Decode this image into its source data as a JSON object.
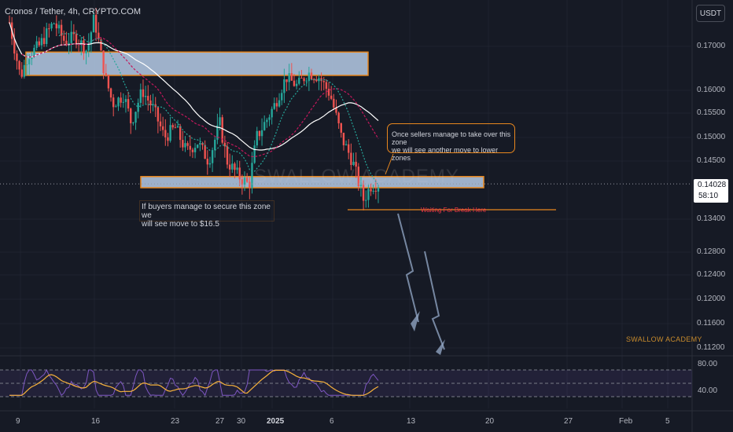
{
  "header": {
    "symbol_title": "Cronos / Tether, 4h, CRYPTO.COM",
    "currency_button": "USDT"
  },
  "price_tag": {
    "price": "0.14028",
    "countdown": "58:10"
  },
  "annotations": {
    "sell_note": [
      "Once sellers manage to take over this zone",
      "we will see another move to lower zones"
    ],
    "buy_note": [
      "If buyers manage to secure this zone we",
      "will see move to $16.5"
    ],
    "wait_label": "Waiting For Break Here",
    "watermark": "SWALLOW ACADEMY",
    "brand": "SWALLOW ACADEMY"
  },
  "colors": {
    "background": "#161a25",
    "bull": "#26a69a",
    "bear": "#ef5350",
    "zone_fill": "#b6cde8",
    "zone_border": "#e8871e",
    "rsi_line": "#7e57c2",
    "rsi_ma": "#f7b23b"
  },
  "chart_data": [
    {
      "type": "candlestick",
      "title": "Cronos / Tether, 4h, CRYPTO.COM",
      "y_ticks": [
        "0.17000",
        "0.16000",
        "0.15500",
        "0.15000",
        "0.14500",
        "0.13400",
        "0.12800",
        "0.12400",
        "0.12000",
        "0.11600",
        "0.11200"
      ],
      "x_ticks": [
        "9",
        "16",
        "23",
        "27",
        "30",
        "2025",
        "6",
        "13",
        "20",
        "27",
        "Feb",
        "5"
      ],
      "last_price": 0.14028,
      "zones": [
        {
          "name": "resistance",
          "ylim": [
            0.1634,
            0.1687
          ]
        },
        {
          "name": "support",
          "ylim": [
            0.1395,
            0.1418
          ]
        }
      ],
      "path_points": [
        [
          0,
          0.175
        ],
        [
          3,
          0.163
        ],
        [
          5,
          0.168
        ],
        [
          8,
          0.17
        ],
        [
          12,
          0.175
        ],
        [
          15,
          0.171
        ],
        [
          18,
          0.172
        ],
        [
          21,
          0.169
        ],
        [
          23,
          0.176
        ],
        [
          26,
          0.163
        ],
        [
          28,
          0.157
        ],
        [
          31,
          0.159
        ],
        [
          33,
          0.153
        ],
        [
          36,
          0.16
        ],
        [
          39,
          0.156
        ],
        [
          42,
          0.15
        ],
        [
          45,
          0.152
        ],
        [
          48,
          0.147
        ],
        [
          51,
          0.149
        ],
        [
          54,
          0.145
        ],
        [
          57,
          0.153
        ],
        [
          59,
          0.145
        ],
        [
          62,
          0.142
        ],
        [
          65,
          0.14
        ],
        [
          67,
          0.15
        ],
        [
          70,
          0.154
        ],
        [
          72,
          0.157
        ],
        [
          75,
          0.163
        ],
        [
          78,
          0.161
        ],
        [
          81,
          0.164
        ],
        [
          84,
          0.163
        ],
        [
          87,
          0.159
        ],
        [
          90,
          0.15
        ],
        [
          93,
          0.145
        ],
        [
          96,
          0.137
        ],
        [
          98,
          0.14
        ],
        [
          100,
          0.14028
        ]
      ]
    },
    {
      "type": "line",
      "title": "RSI",
      "y_ticks": [
        "80.00",
        "40.00"
      ],
      "bands": [
        30,
        70
      ]
    }
  ]
}
